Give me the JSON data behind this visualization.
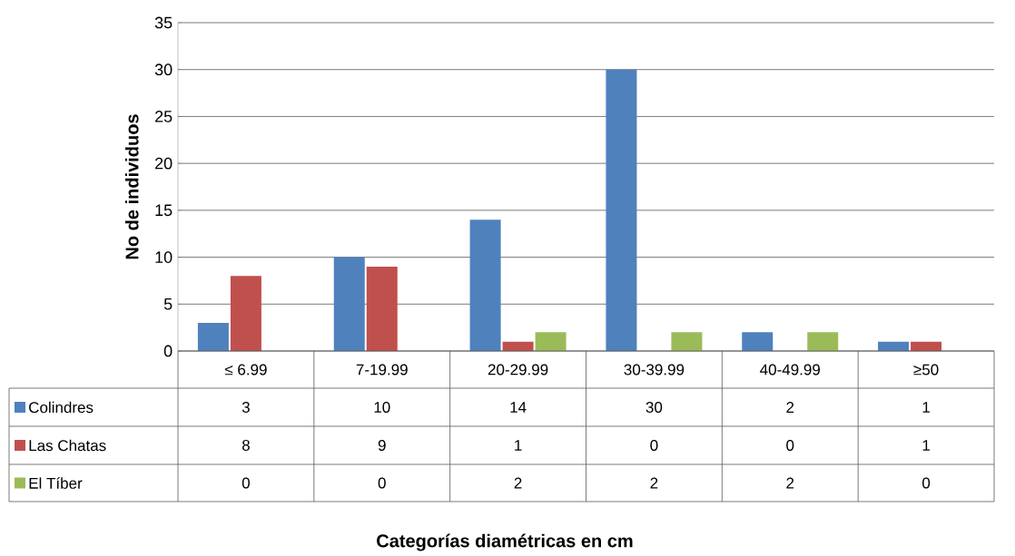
{
  "chart_data": {
    "type": "bar",
    "annotations": [
      "Categorías diamétricas en cm"
    ],
    "ylabel": "No de individuos",
    "categories": [
      "≤ 6.99",
      "7-19.99",
      "20-29.99",
      "30-39.99",
      "40-49.99",
      "≥50"
    ],
    "series": [
      {
        "name": "Colindres",
        "color": "#4f81bd",
        "values": [
          3,
          10,
          14,
          30,
          2,
          1
        ]
      },
      {
        "name": "Las Chatas",
        "color": "#c0504d",
        "values": [
          8,
          9,
          1,
          0,
          0,
          1
        ]
      },
      {
        "name": "El Tíber",
        "color": "#9bbb59",
        "values": [
          0,
          0,
          2,
          2,
          2,
          0
        ]
      }
    ],
    "ylim": [
      0,
      35
    ],
    "yticks": [
      0,
      5,
      10,
      15,
      20,
      25,
      30,
      35
    ],
    "grid": "y",
    "legend": "bottom",
    "data_labels": true
  }
}
